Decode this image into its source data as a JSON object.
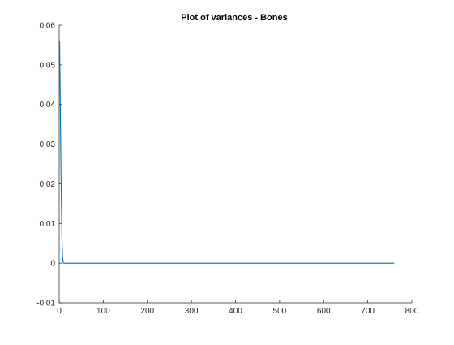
{
  "chart_data": {
    "type": "line",
    "title": "Plot of variances - Bones",
    "xlabel": "",
    "ylabel": "",
    "xlim": [
      0,
      800
    ],
    "ylim": [
      -0.01,
      0.06
    ],
    "x_ticks": [
      0,
      100,
      200,
      300,
      400,
      500,
      600,
      700,
      800
    ],
    "y_ticks": [
      -0.01,
      0,
      0.01,
      0.02,
      0.03,
      0.04,
      0.05,
      0.06
    ],
    "x_tick_labels": [
      "0",
      "100",
      "200",
      "300",
      "400",
      "500",
      "600",
      "700",
      "800"
    ],
    "y_tick_labels": [
      "-0.01",
      "0",
      "0.01",
      "0.02",
      "0.03",
      "0.04",
      "0.05",
      "0.06"
    ],
    "grid": false,
    "box": "left-bottom",
    "series": [
      {
        "color": "#0072BD",
        "x": [
          1,
          2,
          3,
          4,
          5,
          6,
          7,
          8,
          9,
          10,
          760
        ],
        "y": [
          0.056,
          0.045,
          0.034,
          0.024,
          0.015,
          0.008,
          0.003,
          0.001,
          0.0003,
          0,
          0
        ]
      }
    ]
  }
}
